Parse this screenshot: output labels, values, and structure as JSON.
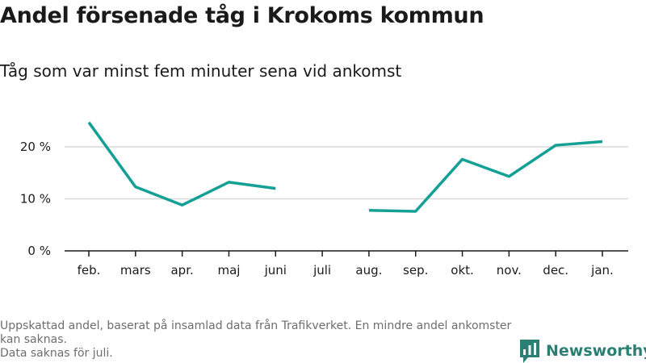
{
  "title": "Andel försenade tåg i Krokoms kommun",
  "subtitle": "Tåg som var minst fem minuter sena vid ankomst",
  "footnote": {
    "line1": "Uppskattad andel, baserat på insamlad data från Trafikverket. En mindre andel ankomster kan saknas.",
    "line2": "Data saknas för juli."
  },
  "brand": {
    "name": "Newsworthy",
    "icon": "newsworthy-logo-icon"
  },
  "colors": {
    "line": "#14a095",
    "brand": "#2b7f73",
    "grid": "#d9d9d9",
    "axis": "#1a1a1a"
  },
  "chart_data": {
    "type": "line",
    "title": "Andel försenade tåg i Krokoms kommun",
    "subtitle": "Tåg som var minst fem minuter sena vid ankomst",
    "categories": [
      "feb.",
      "mars",
      "apr.",
      "maj",
      "juni",
      "juli",
      "aug.",
      "sep.",
      "okt.",
      "nov.",
      "dec.",
      "jan."
    ],
    "series": [
      {
        "values": [
          24.7,
          12.3,
          8.8,
          13.2,
          12.0,
          null,
          7.8,
          7.6,
          17.6,
          14.3,
          20.3,
          21.0
        ]
      }
    ],
    "y_ticks": [
      {
        "value": 0,
        "label": "0 %"
      },
      {
        "value": 10,
        "label": "10 %"
      },
      {
        "value": 20,
        "label": "20 %"
      }
    ],
    "ylim": [
      0,
      26
    ],
    "xlabel": "",
    "ylabel": "",
    "grid": true,
    "legend": "none"
  }
}
